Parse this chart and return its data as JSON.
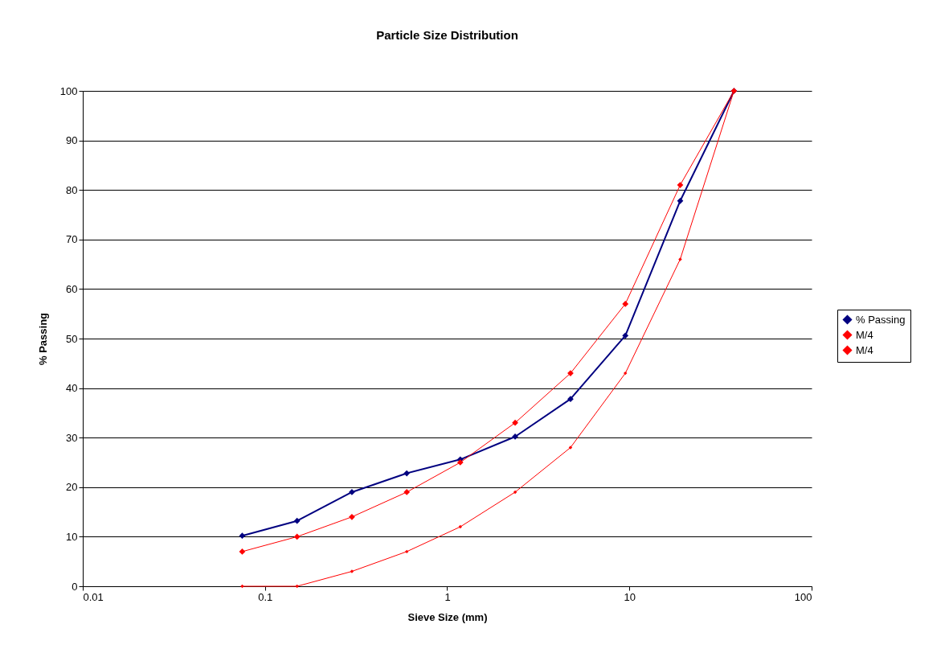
{
  "chart_data": {
    "type": "line",
    "title": "Particle Size Distribution",
    "xlabel": "Sieve Size (mm)",
    "ylabel": "% Passing",
    "x": [
      0.075,
      0.15,
      0.3,
      0.6,
      1.18,
      2.36,
      4.75,
      9.5,
      19,
      37.5
    ],
    "series": [
      {
        "name": "% Passing",
        "color": "#000080",
        "values": [
          10.2,
          13.2,
          19.0,
          22.8,
          25.6,
          30.2,
          37.8,
          50.6,
          77.8,
          100
        ]
      },
      {
        "name": "M/4",
        "color": "#ff0000",
        "values": [
          0,
          0,
          3,
          7,
          12,
          19,
          28,
          43,
          66,
          100
        ]
      },
      {
        "name": "M/4",
        "color": "#ff0000",
        "values": [
          7,
          10,
          14,
          19,
          25,
          33,
          43,
          57,
          81,
          100
        ]
      }
    ],
    "log": "x",
    "xlim": [
      0.01,
      100
    ],
    "xticks": [
      0.01,
      0.1,
      1,
      10,
      100
    ],
    "ylim": [
      0,
      100
    ],
    "yticks": [
      0,
      10,
      20,
      30,
      40,
      50,
      60,
      70,
      80,
      90,
      100
    ],
    "grid": "y",
    "legend": "right",
    "marker": "diamond",
    "line_style": "solid"
  }
}
